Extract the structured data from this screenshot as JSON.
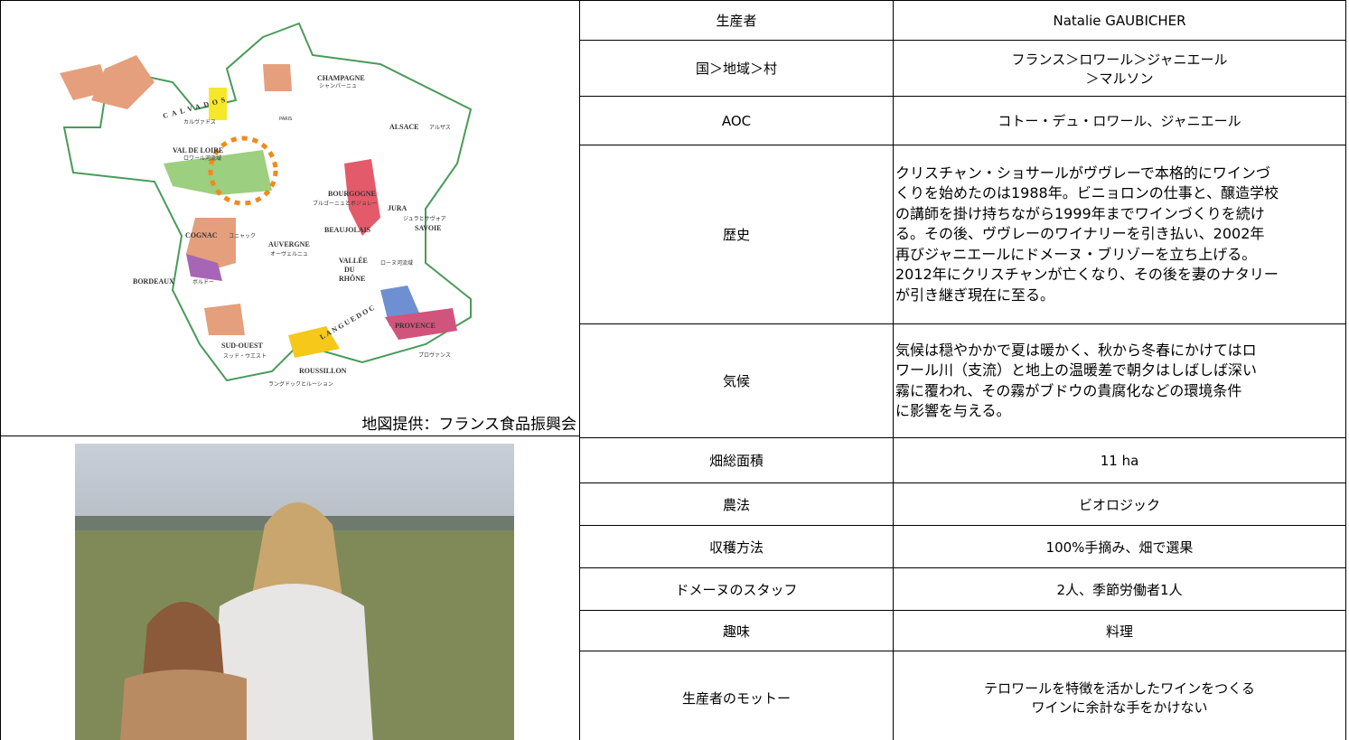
{
  "map": {
    "caption": "地図提供：フランス食品振興会",
    "labels": [
      "CHAMPAGNE",
      "シャンパーニュ",
      "ALSACE",
      "アルザス",
      "CALVADOS",
      "カルヴァドス",
      "PARIS",
      "VAL DE LOIRE",
      "ロワール河流域",
      "BOURGOGNE",
      "ブルゴーニュとボジョレー",
      "JURA",
      "ジュラとサヴォア",
      "SAVOIE",
      "COGNAC",
      "コニャック",
      "AUVERGNE",
      "オーヴェルニュ",
      "BEAUJOLAIS",
      "VALLÉE",
      "DU",
      "RHÔNE",
      "ローヌ河流域",
      "BORDEAUX",
      "ボルドー",
      "LANGUEDOC",
      "PROVENCE",
      "プロヴァンス",
      "SUD-OUEST",
      "スッド・ウエスト",
      "ROUSSILLON",
      "ラングドックとルーション"
    ]
  },
  "table": {
    "rows": [
      {
        "label": "生産者",
        "value": [
          "Natalie GAUBICHER"
        ]
      },
      {
        "label": "国＞地域＞村",
        "value": [
          "フランス＞ロワール＞ジャニエール",
          "＞マルソン"
        ]
      },
      {
        "label": "AOC",
        "value": [
          "コトー・デュ・ロワール、ジャニエール"
        ]
      },
      {
        "label": "歴史",
        "value": [
          "クリスチャン・ショサールがヴヴレーで本格的にワインづ",
          "くりを始めたのは1988年。ビニョロンの仕事と、醸造学校",
          "の講師を掛け持ちながら1999年までワインづくりを続け",
          "る。その後、ヴヴレーのワイナリーを引き払い、2002年",
          "再びジャニエールにドメーヌ・ブリゾーを立ち上げる。",
          "2012年にクリスチャンが亡くなり、その後を妻のナタリー",
          "が引き継ぎ現在に至る。"
        ]
      },
      {
        "label": "気候",
        "value": [
          "気候は穏やかかで夏は暖かく、秋から冬春にかけてはロ",
          "ワール川（支流）と地上の温暖差で朝夕はしばしば深い",
          "霧に覆われ、その霧がブドウの貴腐化などの環境条件",
          "に影響を与える。"
        ]
      },
      {
        "label": "畑総面積",
        "value": [
          "11 ha"
        ]
      },
      {
        "label": "農法",
        "value": [
          "ビオロジック"
        ]
      },
      {
        "label": "収穫方法",
        "value": [
          "100%手摘み、畑で選果"
        ]
      },
      {
        "label": "ドメーヌのスタッフ",
        "value": [
          "2人、季節労働者1人"
        ]
      },
      {
        "label": "趣味",
        "value": [
          "料理"
        ]
      },
      {
        "label": "生産者のモットー",
        "value": [
          "テロワールを特徴を活かしたワインをつくる",
          "ワインに余計な手をかけない"
        ]
      }
    ]
  }
}
